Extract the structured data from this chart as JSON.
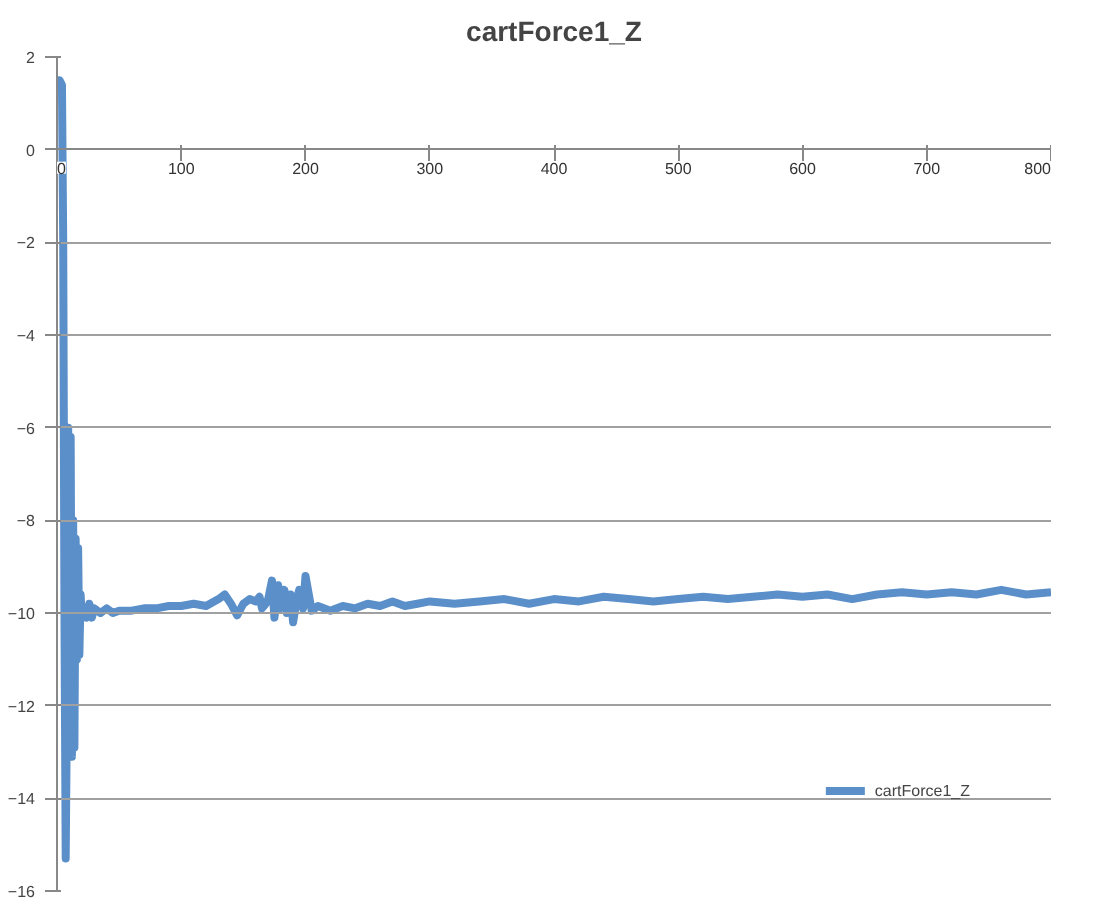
{
  "chart_data": {
    "type": "line",
    "title": "cartForce1_Z",
    "xlim": [
      0,
      800
    ],
    "ylim": [
      -16,
      2
    ],
    "xticks": [
      0,
      100,
      200,
      300,
      400,
      500,
      600,
      700,
      800
    ],
    "yticks": [
      -16,
      -14,
      -12,
      -10,
      -8,
      -6,
      -4,
      -2,
      0,
      2
    ],
    "grid": "y",
    "legend": "bottom right",
    "marker": "none",
    "line_style": "solid",
    "series": [
      {
        "name": "cartForce1_Z",
        "color": "#5b8fc9",
        "x": [
          0,
          2,
          4,
          5,
          6,
          7,
          8,
          9,
          10,
          11,
          12,
          13,
          14,
          15,
          16,
          17,
          18,
          19,
          20,
          22,
          24,
          26,
          28,
          30,
          35,
          40,
          45,
          50,
          60,
          70,
          80,
          90,
          100,
          110,
          120,
          130,
          135,
          140,
          145,
          150,
          155,
          160,
          163,
          165,
          168,
          170,
          173,
          175,
          178,
          180,
          183,
          185,
          188,
          190,
          193,
          195,
          198,
          200,
          205,
          210,
          220,
          230,
          240,
          250,
          260,
          270,
          280,
          290,
          300,
          320,
          340,
          360,
          380,
          400,
          420,
          440,
          460,
          480,
          500,
          520,
          540,
          560,
          580,
          600,
          620,
          640,
          660,
          680,
          700,
          720,
          740,
          760,
          780,
          800
        ],
        "values": [
          1.5,
          1.5,
          1.4,
          -2,
          -10,
          -15.3,
          -12,
          -6,
          -13,
          -6.2,
          -13.1,
          -8,
          -12.9,
          -8.4,
          -11,
          -8.6,
          -10.9,
          -9.6,
          -10.1,
          -9.9,
          -10.1,
          -9.8,
          -10.1,
          -9.9,
          -10.0,
          -9.9,
          -10.0,
          -9.95,
          -9.95,
          -9.9,
          -9.9,
          -9.85,
          -9.85,
          -9.8,
          -9.85,
          -9.7,
          -9.6,
          -9.8,
          -10.05,
          -9.8,
          -9.7,
          -9.75,
          -9.65,
          -9.9,
          -9.8,
          -9.7,
          -9.3,
          -10.1,
          -9.4,
          -9.9,
          -9.5,
          -10.0,
          -9.6,
          -10.2,
          -9.7,
          -9.5,
          -9.9,
          -9.2,
          -9.95,
          -9.85,
          -9.95,
          -9.85,
          -9.9,
          -9.8,
          -9.85,
          -9.75,
          -9.85,
          -9.8,
          -9.75,
          -9.8,
          -9.75,
          -9.7,
          -9.8,
          -9.7,
          -9.75,
          -9.65,
          -9.7,
          -9.75,
          -9.7,
          -9.65,
          -9.7,
          -9.65,
          -9.6,
          -9.65,
          -9.6,
          -9.7,
          -9.6,
          -9.55,
          -9.6,
          -9.55,
          -9.6,
          -9.5,
          -9.6,
          -9.55
        ]
      }
    ]
  }
}
